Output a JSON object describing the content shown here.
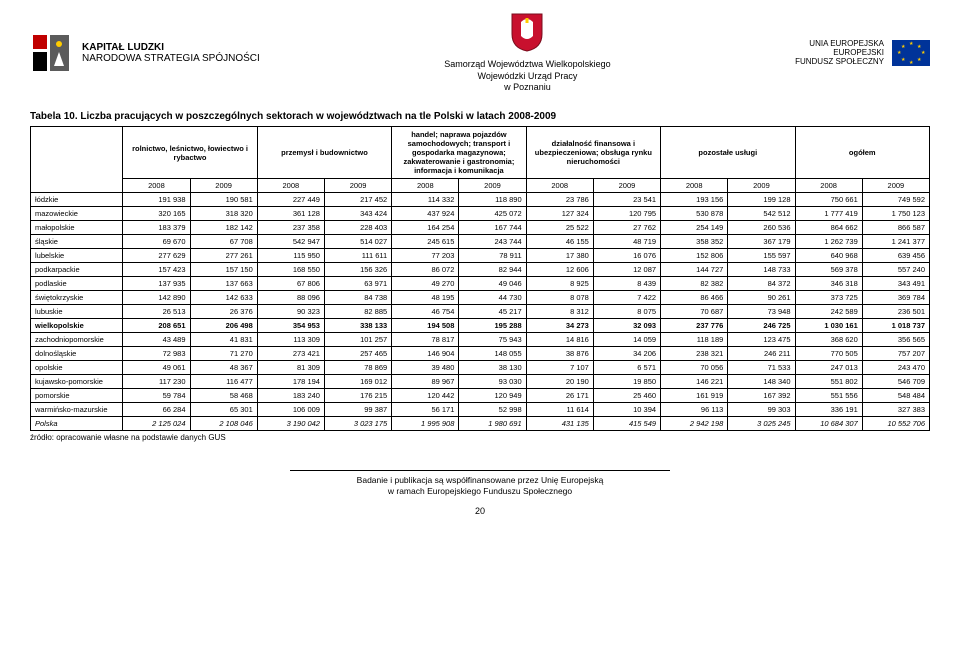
{
  "header": {
    "left_logo": {
      "line1": "KAPITAŁ LUDZKI",
      "line2": "NARODOWA STRATEGIA SPÓJNOŚCI"
    },
    "center": {
      "line0": "Samorząd Województwa Wielkopolskiego",
      "line1": "Wojewódzki Urząd Pracy",
      "line2": "w Poznaniu"
    },
    "right": {
      "line1": "UNIA EUROPEJSKA",
      "line2": "EUROPEJSKI",
      "line3": "FUNDUSZ SPOŁECZNY"
    }
  },
  "table": {
    "caption": "Tabela 10. Liczba pracujących w poszczególnych sektorach w województwach na tle Polski w latach 2008-2009",
    "group_headers": [
      "rolnictwo, leśnictwo, łowiectwo i rybactwo",
      "przemysł i budownictwo",
      "handel; naprawa pojazdów samochodowych; transport i gospodarka magazynowa; zakwaterowanie i gastronomia; informacja i komunikacja",
      "działalność finansowa i ubezpieczeniowa; obsługa rynku nieruchomości",
      "pozostałe usługi",
      "ogółem"
    ],
    "year_headers": [
      "2008",
      "2009",
      "2008",
      "2009",
      "2008",
      "2009",
      "2008",
      "2009",
      "2008",
      "2009",
      "2008",
      "2009"
    ],
    "rows": [
      {
        "r": "łódzkie",
        "v": [
          "191 938",
          "190 581",
          "227 449",
          "217 452",
          "114 332",
          "118 890",
          "23 786",
          "23 541",
          "193 156",
          "199 128",
          "750 661",
          "749 592"
        ]
      },
      {
        "r": "mazowieckie",
        "v": [
          "320 165",
          "318 320",
          "361 128",
          "343 424",
          "437 924",
          "425 072",
          "127 324",
          "120 795",
          "530 878",
          "542 512",
          "1 777 419",
          "1 750 123"
        ]
      },
      {
        "r": "małopolskie",
        "v": [
          "183 379",
          "182 142",
          "237 358",
          "228 403",
          "164 254",
          "167 744",
          "25 522",
          "27 762",
          "254 149",
          "260 536",
          "864 662",
          "866 587"
        ]
      },
      {
        "r": "śląskie",
        "v": [
          "69 670",
          "67 708",
          "542 947",
          "514 027",
          "245 615",
          "243 744",
          "46 155",
          "48 719",
          "358 352",
          "367 179",
          "1 262 739",
          "1 241 377"
        ]
      },
      {
        "r": "lubelskie",
        "v": [
          "277 629",
          "277 261",
          "115 950",
          "111 611",
          "77 203",
          "78 911",
          "17 380",
          "16 076",
          "152 806",
          "155 597",
          "640 968",
          "639 456"
        ]
      },
      {
        "r": "podkarpackie",
        "v": [
          "157 423",
          "157 150",
          "168 550",
          "156 326",
          "86 072",
          "82 944",
          "12 606",
          "12 087",
          "144 727",
          "148 733",
          "569 378",
          "557 240"
        ]
      },
      {
        "r": "podlaskie",
        "v": [
          "137 935",
          "137 663",
          "67 806",
          "63 971",
          "49 270",
          "49 046",
          "8 925",
          "8 439",
          "82 382",
          "84 372",
          "346 318",
          "343 491"
        ]
      },
      {
        "r": "świętokrzyskie",
        "v": [
          "142 890",
          "142 633",
          "88 096",
          "84 738",
          "48 195",
          "44 730",
          "8 078",
          "7 422",
          "86 466",
          "90 261",
          "373 725",
          "369 784"
        ]
      },
      {
        "r": "lubuskie",
        "v": [
          "26 513",
          "26 376",
          "90 323",
          "82 885",
          "46 754",
          "45 217",
          "8 312",
          "8 075",
          "70 687",
          "73 948",
          "242 589",
          "236 501"
        ]
      },
      {
        "r": "wielkopolskie",
        "v": [
          "208 651",
          "206 498",
          "354 953",
          "338 133",
          "194 508",
          "195 288",
          "34 273",
          "32 093",
          "237 776",
          "246 725",
          "1 030 161",
          "1 018 737"
        ],
        "bold": true
      },
      {
        "r": "zachodniopomorskie",
        "v": [
          "43 489",
          "41 831",
          "113 309",
          "101 257",
          "78 817",
          "75 943",
          "14 816",
          "14 059",
          "118 189",
          "123 475",
          "368 620",
          "356 565"
        ]
      },
      {
        "r": "dolnośląskie",
        "v": [
          "72 983",
          "71 270",
          "273 421",
          "257 465",
          "146 904",
          "148 055",
          "38 876",
          "34 206",
          "238 321",
          "246 211",
          "770 505",
          "757 207"
        ]
      },
      {
        "r": "opolskie",
        "v": [
          "49 061",
          "48 367",
          "81 309",
          "78 869",
          "39 480",
          "38 130",
          "7 107",
          "6 571",
          "70 056",
          "71 533",
          "247 013",
          "243 470"
        ]
      },
      {
        "r": "kujawsko-pomorskie",
        "v": [
          "117 230",
          "116 477",
          "178 194",
          "169 012",
          "89 967",
          "93 030",
          "20 190",
          "19 850",
          "146 221",
          "148 340",
          "551 802",
          "546 709"
        ]
      },
      {
        "r": "pomorskie",
        "v": [
          "59 784",
          "58 468",
          "183 240",
          "176 215",
          "120 442",
          "120 949",
          "26 171",
          "25 460",
          "161 919",
          "167 392",
          "551 556",
          "548 484"
        ]
      },
      {
        "r": "warmińsko-mazurskie",
        "v": [
          "66 284",
          "65 301",
          "106 009",
          "99 387",
          "56 171",
          "52 998",
          "11 614",
          "10 394",
          "96 113",
          "99 303",
          "336 191",
          "327 383"
        ]
      },
      {
        "r": "Polska",
        "v": [
          "2 125 024",
          "2 108 046",
          "3 190 042",
          "3 023 175",
          "1 995 908",
          "1 980 691",
          "431 135",
          "415 549",
          "2 942 198",
          "3 025 245",
          "10 684 307",
          "10 552 706"
        ],
        "italic": true
      }
    ],
    "source": "źródło: opracowanie własne na podstawie danych GUS"
  },
  "footer": {
    "line1": "Badanie i publikacja są współfinansowane przez Unię Europejską",
    "line2": "w ramach Europejskiego Funduszu Społecznego",
    "page": "20"
  }
}
